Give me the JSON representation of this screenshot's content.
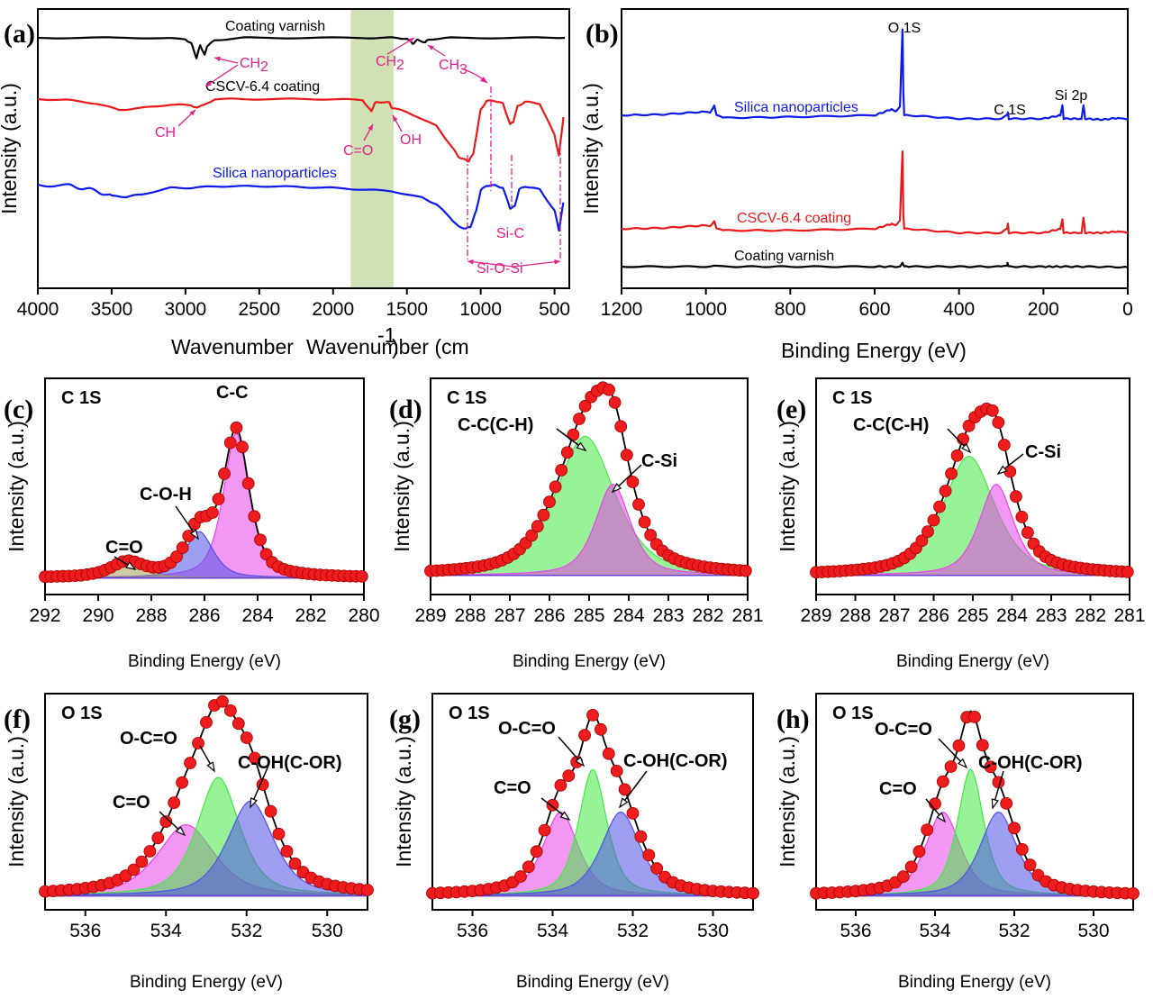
{
  "chart_data": [
    {
      "panel": "(a)",
      "type": "line",
      "title": "",
      "xlabel": "Wavenumber (cm⁻¹)",
      "ylabel": "Intensity (a.u.)",
      "xlim": [
        4000,
        400
      ],
      "xticks": [
        4000,
        3500,
        3000,
        2500,
        2000,
        1500,
        1000,
        500
      ],
      "shaded_region": [
        1880,
        1590
      ],
      "series": [
        {
          "name": "Coating varnish",
          "color": "#000000",
          "x": [
            4000,
            3600,
            3200,
            3000,
            2960,
            2925,
            2900,
            2870,
            2855,
            2800,
            2600,
            2200,
            1800,
            1600,
            1500,
            1460,
            1430,
            1375,
            1350,
            1200,
            800,
            430
          ],
          "y": [
            0.0,
            0.0,
            0.0,
            -0.02,
            -0.08,
            -0.28,
            -0.1,
            -0.24,
            -0.12,
            -0.03,
            0.0,
            0.0,
            0.0,
            0.0,
            -0.01,
            -0.08,
            -0.03,
            -0.06,
            -0.02,
            0.0,
            0.0,
            0.0
          ]
        },
        {
          "name": "CSCV-6.4 coating",
          "color": "#e8191a",
          "x": [
            4000,
            3800,
            3600,
            3450,
            3300,
            3100,
            2960,
            2920,
            2800,
            2600,
            2300,
            2000,
            1800,
            1740,
            1720,
            1700,
            1620,
            1600,
            1500,
            1300,
            1200,
            1150,
            1100,
            1080,
            1050,
            1000,
            960,
            900,
            850,
            800,
            780,
            750,
            700,
            600,
            500,
            470,
            440
          ],
          "y": [
            -0.7,
            -0.71,
            -0.75,
            -0.82,
            -0.8,
            -0.76,
            -0.77,
            -0.8,
            -0.7,
            -0.7,
            -0.7,
            -0.7,
            -0.71,
            -0.84,
            -0.75,
            -0.73,
            -0.74,
            -0.8,
            -0.84,
            -1.0,
            -1.22,
            -1.34,
            -1.38,
            -1.39,
            -1.3,
            -0.82,
            -0.72,
            -0.72,
            -0.75,
            -0.98,
            -0.95,
            -0.78,
            -0.73,
            -0.75,
            -1.1,
            -1.33,
            -0.9
          ]
        },
        {
          "name": "Silica nanoparticles",
          "color": "#0d1ae8",
          "x": [
            4000,
            3800,
            3700,
            3600,
            3500,
            3400,
            3300,
            3100,
            2960,
            2800,
            2600,
            2400,
            2200,
            2000,
            1800,
            1600,
            1400,
            1300,
            1200,
            1150,
            1100,
            1070,
            1030,
            1000,
            960,
            900,
            850,
            800,
            770,
            740,
            700,
            600,
            500,
            470,
            440
          ],
          "y": [
            -1.68,
            -1.69,
            -1.72,
            -1.76,
            -1.82,
            -1.83,
            -1.8,
            -1.72,
            -1.72,
            -1.7,
            -1.7,
            -1.7,
            -1.71,
            -1.72,
            -1.74,
            -1.76,
            -1.84,
            -1.92,
            -2.1,
            -2.2,
            -2.22,
            -2.2,
            -2.0,
            -1.75,
            -1.69,
            -1.69,
            -1.72,
            -1.97,
            -1.95,
            -1.74,
            -1.7,
            -1.74,
            -2.0,
            -2.24,
            -1.9
          ]
        }
      ],
      "series_labels": [
        "Coating varnish",
        "CSCV-6.4 coating",
        "Silica nanoparticles"
      ],
      "annotations": [
        "CH2",
        "CH2",
        "CH3",
        "CH",
        "C=O",
        "OH",
        "Si-C",
        "Si-O-Si"
      ]
    },
    {
      "panel": "(b)",
      "type": "line",
      "title": "",
      "xlabel": "Binding Energy (eV)",
      "ylabel": "Intensity (a.u.)",
      "xlim": [
        1200,
        0
      ],
      "xticks": [
        1200,
        1000,
        800,
        600,
        400,
        200,
        0
      ],
      "series": [
        {
          "name": "Silica nanoparticles",
          "color": "#0d1ae8",
          "x": [
            1200,
            1100,
            1010,
            990,
            980,
            975,
            960,
            800,
            600,
            560,
            550,
            540,
            534,
            532,
            530,
            520,
            400,
            300,
            286,
            284,
            282,
            200,
            160,
            155,
            152,
            110,
            105,
            101,
            60,
            20,
            0
          ],
          "y": [
            0.0,
            0.01,
            0.04,
            0.03,
            0.12,
            0.0,
            -0.03,
            -0.02,
            0.0,
            0.07,
            0.05,
            0.1,
            1.0,
            0.3,
            0.0,
            0.0,
            -0.04,
            -0.04,
            0.0,
            0.04,
            -0.04,
            -0.04,
            0.0,
            0.12,
            -0.04,
            -0.04,
            0.12,
            -0.04,
            -0.05,
            -0.03,
            -0.05
          ]
        },
        {
          "name": "CSCV-6.4 coating",
          "color": "#e8191a",
          "x": [
            1200,
            1100,
            1010,
            990,
            980,
            975,
            960,
            800,
            600,
            560,
            550,
            540,
            534,
            532,
            530,
            520,
            400,
            300,
            286,
            284,
            282,
            200,
            160,
            155,
            152,
            110,
            105,
            101,
            60,
            20,
            0
          ],
          "y": [
            0.0,
            0.01,
            0.04,
            0.03,
            0.1,
            0.0,
            -0.02,
            -0.02,
            0.0,
            0.06,
            0.05,
            0.1,
            0.95,
            0.2,
            0.0,
            0.0,
            -0.05,
            -0.05,
            0.0,
            0.07,
            -0.05,
            -0.05,
            0.0,
            0.12,
            -0.05,
            -0.05,
            0.14,
            -0.05,
            -0.05,
            -0.03,
            -0.05
          ]
        },
        {
          "name": "Coating varnish",
          "color": "#000000",
          "x": [
            1200,
            1000,
            980,
            960,
            800,
            600,
            540,
            534,
            530,
            520,
            400,
            300,
            286,
            285,
            283,
            200,
            160,
            100,
            0
          ],
          "y": [
            0.0,
            0.0,
            0.01,
            0.0,
            0.0,
            0.0,
            0.0,
            0.08,
            0.0,
            0.0,
            0.0,
            0.0,
            0.01,
            0.08,
            0.0,
            0.0,
            0.0,
            0.0,
            -0.01
          ]
        }
      ],
      "series_labels": [
        "Silica nanoparticles",
        "CSCV-6.4 coating",
        "Coating varnish"
      ],
      "annotations": [
        "O 1S",
        "C 1S",
        "Si 2p"
      ]
    },
    {
      "panel": "(c)",
      "type": "line",
      "title": "C 1S",
      "xlabel": "Binding Energy (eV)",
      "ylabel": "Intensity (a.u.)",
      "xlim": [
        292,
        280
      ],
      "ylim": [
        0,
        1.2
      ],
      "xticks": [
        292,
        290,
        288,
        286,
        284,
        282,
        280
      ],
      "components": [
        {
          "name": "C-C",
          "center": 284.8,
          "fwhm": 1.1,
          "height": 1.0,
          "color": "#e844e8"
        },
        {
          "name": "C-O-H",
          "center": 286.2,
          "fwhm": 1.2,
          "height": 0.32,
          "color": "#5050e8"
        },
        {
          "name": "C=O",
          "center": 288.9,
          "fwhm": 1.4,
          "height": 0.1,
          "color": "#a0a060"
        }
      ],
      "baseline": 0.04,
      "labels": [
        "C=O",
        "C-O-H",
        "C-C"
      ]
    },
    {
      "panel": "(d)",
      "type": "line",
      "title": "C 1S",
      "xlabel": "Binding Energy (eV)",
      "ylabel": "Intensity (a.u.)",
      "xlim": [
        289,
        281
      ],
      "ylim": [
        0,
        1.05
      ],
      "xticks": [
        289,
        288,
        287,
        286,
        285,
        284,
        283,
        282,
        281
      ],
      "components": [
        {
          "name": "C-C(C-H)",
          "center": 285.1,
          "fwhm": 1.7,
          "height": 0.84,
          "color": "#44e844"
        },
        {
          "name": "C-Si",
          "center": 284.4,
          "fwhm": 1.0,
          "height": 0.55,
          "color": "#e844e8"
        }
      ],
      "baseline": 0.05,
      "labels": [
        "C-C(C-H)",
        "C-Si"
      ]
    },
    {
      "panel": "(e)",
      "type": "line",
      "title": "C 1S",
      "xlabel": "Binding Energy (eV)",
      "ylabel": "Intensity (a.u.)",
      "xlim": [
        289,
        281
      ],
      "ylim": [
        0,
        1.05
      ],
      "xticks": [
        289,
        288,
        287,
        286,
        285,
        284,
        283,
        282,
        281
      ],
      "components": [
        {
          "name": "C-C(C-H)",
          "center": 285.1,
          "fwhm": 1.5,
          "height": 0.72,
          "color": "#44e844"
        },
        {
          "name": "C-Si",
          "center": 284.4,
          "fwhm": 1.0,
          "height": 0.55,
          "color": "#e844e8"
        }
      ],
      "baseline": 0.05,
      "labels": [
        "C-C(C-H)",
        "C-Si"
      ]
    },
    {
      "panel": "(f)",
      "type": "line",
      "title": "O 1S",
      "xlabel": "Binding Energy (eV)",
      "ylabel": "Intensity (a.u.)",
      "xlim": [
        537,
        529
      ],
      "ylim": [
        0,
        1.1
      ],
      "xticks": [
        536,
        534,
        532,
        530
      ],
      "components": [
        {
          "name": "C=O",
          "center": 533.5,
          "fwhm": 1.6,
          "height": 0.45,
          "color": "#e844e8"
        },
        {
          "name": "O-C=O",
          "center": 532.7,
          "fwhm": 1.2,
          "height": 0.75,
          "color": "#44e844"
        },
        {
          "name": "C-OH(C-OR)",
          "center": 531.9,
          "fwhm": 1.3,
          "height": 0.6,
          "color": "#5050e8"
        }
      ],
      "baseline": 0.02,
      "labels": [
        "C=O",
        "O-C=O",
        "C-OH(C-OR)"
      ]
    },
    {
      "panel": "(g)",
      "type": "line",
      "title": "O 1S",
      "xlabel": "Binding Energy (eV)",
      "ylabel": "Intensity (a.u.)",
      "xlim": [
        537,
        529
      ],
      "ylim": [
        0,
        1.1
      ],
      "xticks": [
        536,
        534,
        532,
        530
      ],
      "components": [
        {
          "name": "C=O",
          "center": 533.8,
          "fwhm": 1.0,
          "height": 0.53,
          "color": "#e844e8"
        },
        {
          "name": "O-C=O",
          "center": 533.0,
          "fwhm": 0.8,
          "height": 0.8,
          "color": "#44e844"
        },
        {
          "name": "C-OH(C-OR)",
          "center": 532.3,
          "fwhm": 1.1,
          "height": 0.53,
          "color": "#5050e8"
        }
      ],
      "baseline": 0.02,
      "labels": [
        "C=O",
        "O-C=O",
        "C-OH(C-OR)"
      ]
    },
    {
      "panel": "(h)",
      "type": "line",
      "title": "O 1S",
      "xlabel": "Binding Energy (eV)",
      "ylabel": "Intensity (a.u.)",
      "xlim": [
        537,
        529
      ],
      "ylim": [
        0,
        1.1
      ],
      "xticks": [
        536,
        534,
        532,
        530
      ],
      "components": [
        {
          "name": "C=O",
          "center": 533.8,
          "fwhm": 1.0,
          "height": 0.53,
          "color": "#e844e8"
        },
        {
          "name": "O-C=O",
          "center": 533.1,
          "fwhm": 0.75,
          "height": 0.8,
          "color": "#44e844"
        },
        {
          "name": "C-OH(C-OR)",
          "center": 532.4,
          "fwhm": 1.05,
          "height": 0.53,
          "color": "#5050e8"
        }
      ],
      "baseline": 0.02,
      "labels": [
        "C=O",
        "O-C=O",
        "C-OH(C-OR)"
      ]
    }
  ],
  "text": {
    "annot_a_ch2_1": "CH",
    "annot_a_ch2_1_sub": "2",
    "annot_a_ch2_2": "CH",
    "annot_a_ch2_2_sub": "2",
    "annot_a_ch3": "CH",
    "annot_a_ch3_sub": "3",
    "annot_a_ch": "CH",
    "annot_a_co": "C=O",
    "annot_a_oh": "OH",
    "annot_a_sic": "Si-C",
    "annot_a_siosi": "Si-O-Si",
    "annot_b_o1s": "O 1S",
    "annot_b_c1s": "C 1S",
    "annot_b_si2p": "Si 2p",
    "xlabel_a_main": "Wavenumber (cm",
    "xlabel_a_sup": "-1",
    "xlabel_a_close": ")"
  },
  "colors": {
    "black": "#000000",
    "red": "#e8191a",
    "blue": "#0d1ae8",
    "pink": "#e0208c",
    "shade": "#c8dca8",
    "dot": "#ee1c1c"
  }
}
